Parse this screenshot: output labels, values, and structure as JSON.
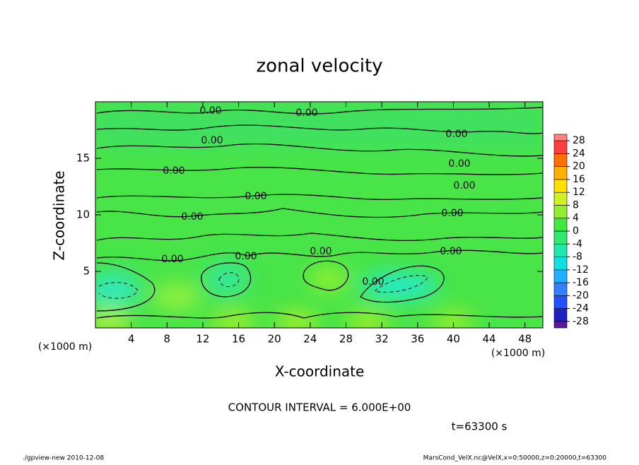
{
  "chart_data": {
    "type": "contour",
    "title": "zonal velocity",
    "xlabel": "X-coordinate",
    "ylabel": "Z-coordinate",
    "xunit": "(×1000 m)",
    "yunit": "(×1000 m)",
    "xlim": [
      0,
      50
    ],
    "ylim": [
      0,
      20
    ],
    "xticks": [
      4,
      8,
      12,
      16,
      20,
      24,
      28,
      32,
      36,
      40,
      44,
      48
    ],
    "yticks": [
      5,
      10,
      15
    ],
    "contour_labels": [
      "0.00",
      "0.00",
      "0.00",
      "0.00",
      "0.00",
      "0.00",
      "0.00",
      "0.00",
      "0.00",
      "0.00",
      "0.00",
      "0.00",
      "0.00",
      "0.00",
      "0.00"
    ],
    "colorbar": {
      "clim": [
        -30,
        30
      ],
      "levels": [
        -28,
        -24,
        -20,
        -16,
        -12,
        -8,
        -4,
        0,
        4,
        8,
        12,
        16,
        20,
        24,
        28
      ],
      "colors": [
        "#5a1a9a",
        "#2020c0",
        "#2050ff",
        "#3080ff",
        "#20b0ff",
        "#10e0e0",
        "#20e8b0",
        "#30e870",
        "#40e840",
        "#90f030",
        "#d0f020",
        "#ffe000",
        "#ffb000",
        "#ff7000",
        "#ff4040",
        "#ff8080"
      ]
    },
    "contour_interval": "CONTOUR INTERVAL = 6.000E+00",
    "time": "t=63300 s",
    "footer_left": "./gpview-new  2010-12-08",
    "footer_right": "MarsCond_VelX.nc@VelX,x=0:50000,z=0:20000,t=63300"
  }
}
